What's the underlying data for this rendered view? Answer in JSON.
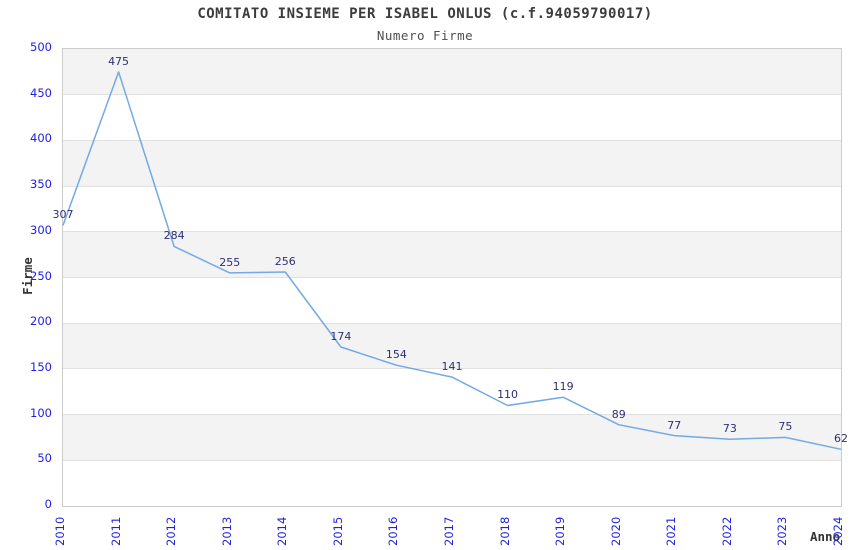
{
  "header": {
    "title": "COMITATO INSIEME PER ISABEL ONLUS (c.f.94059790017)",
    "subtitle": "Numero Firme"
  },
  "chart_data": {
    "type": "line",
    "title": "COMITATO INSIEME PER ISABEL ONLUS (c.f.94059790017)",
    "subtitle": "Numero Firme",
    "xlabel": "Anno",
    "ylabel": "Firme",
    "x": [
      "2010",
      "2011",
      "2012",
      "2013",
      "2014",
      "2015",
      "2016",
      "2017",
      "2018",
      "2019",
      "2020",
      "2021",
      "2022",
      "2023",
      "2024"
    ],
    "values": [
      307,
      475,
      284,
      255,
      256,
      174,
      154,
      141,
      110,
      119,
      89,
      77,
      73,
      75,
      62
    ],
    "ylim": [
      0,
      500
    ],
    "ytick_step": 50,
    "yticks": [
      0,
      50,
      100,
      150,
      200,
      250,
      300,
      350,
      400,
      450,
      500
    ],
    "grid": true,
    "legend": "none",
    "data_labels_shown": true,
    "colors": {
      "line": "#74a9e3",
      "data_label": "#2e2e78",
      "tick_label": "#2222dd",
      "title": "#3c3c3c",
      "subtitle": "#4f4f4f",
      "axis_name": "#333333",
      "band_even": "#f3f3f3",
      "band_odd": "#ffffff",
      "gridline": "#e0e0e0",
      "plot_border": "#cccccc",
      "background": "#ffffff"
    }
  }
}
